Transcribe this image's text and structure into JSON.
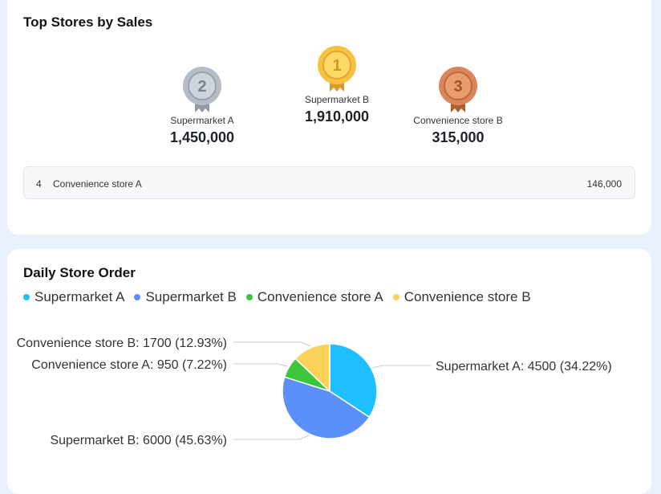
{
  "top_stores": {
    "title": "Top Stores by Sales",
    "podium": [
      {
        "rank": "2",
        "name": "Supermarket A",
        "value": "1,450,000"
      },
      {
        "rank": "1",
        "name": "Supermarket B",
        "value": "1,910,000"
      },
      {
        "rank": "3",
        "name": "Convenience store B",
        "value": "315,000"
      }
    ],
    "others": [
      {
        "rank": "4",
        "name": "Convenience store A",
        "value": "146,000"
      }
    ],
    "medal_colors": {
      "gold": "#f5c242",
      "silver": "#b5bcc6",
      "bronze": "#d9875a"
    }
  },
  "daily_order": {
    "title": "Daily Store Order"
  },
  "chart_data": {
    "type": "pie",
    "title": "Daily Store Order",
    "legend_position": "top-left",
    "series": [
      {
        "name": "Supermarket A",
        "value": 4500,
        "percent": 34.22,
        "color": "#1ec0ff",
        "label": "Supermarket A: 4500 (34.22%)"
      },
      {
        "name": "Supermarket B",
        "value": 6000,
        "percent": 45.63,
        "color": "#5b8ff9",
        "label": "Supermarket B: 6000 (45.63%)"
      },
      {
        "name": "Convenience store A",
        "value": 950,
        "percent": 7.22,
        "color": "#3cc63c",
        "label": "Convenience store A: 950 (7.22%)"
      },
      {
        "name": "Convenience store B",
        "value": 1700,
        "percent": 12.93,
        "color": "#fcd35a",
        "label": "Convenience store B: 1700 (12.93%)"
      }
    ]
  }
}
